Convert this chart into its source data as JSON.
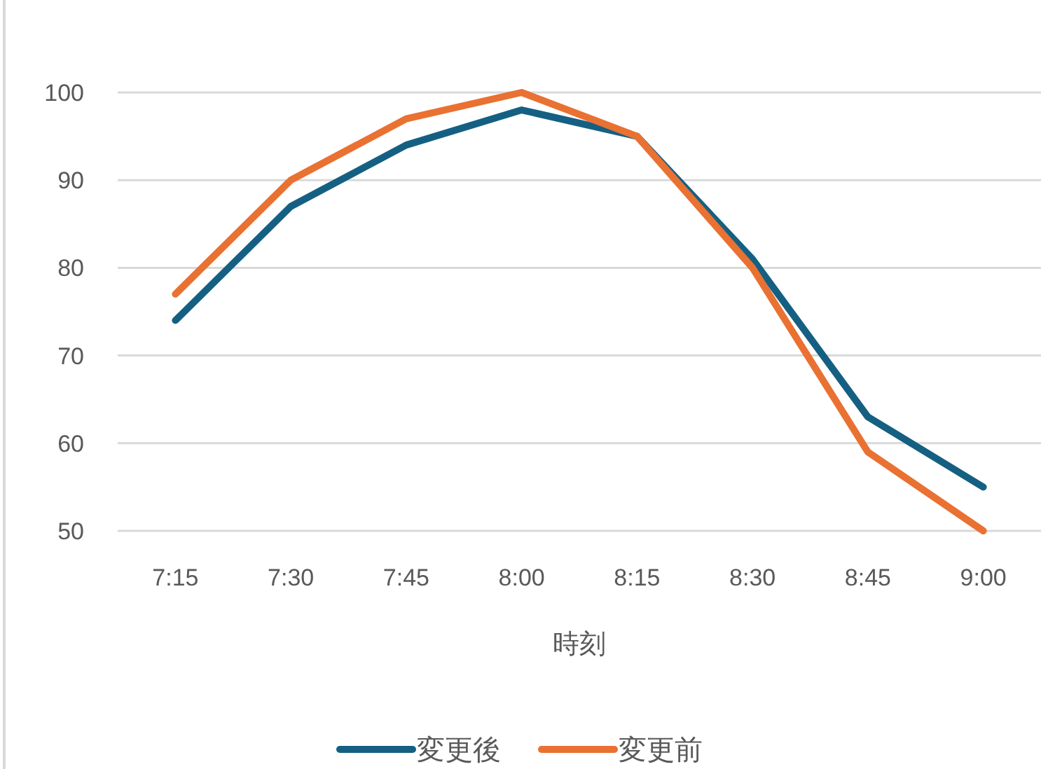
{
  "chart_data": {
    "type": "line",
    "xlabel": "時刻",
    "categories": [
      "7:15",
      "7:30",
      "7:45",
      "8:00",
      "8:15",
      "8:30",
      "8:45",
      "9:00"
    ],
    "series": [
      {
        "name": "変更後",
        "color": "#156082",
        "values": [
          74,
          87,
          94,
          98,
          95,
          81,
          63,
          55
        ]
      },
      {
        "name": "変更前",
        "color": "#e97132",
        "values": [
          77,
          90,
          97,
          100,
          95,
          80,
          59,
          50
        ]
      }
    ],
    "ylim": [
      50,
      100
    ],
    "yticks": [
      50,
      60,
      70,
      80,
      90,
      100
    ],
    "grid": "y",
    "legend": "bottom",
    "marker": "none",
    "line_style": "solid"
  }
}
